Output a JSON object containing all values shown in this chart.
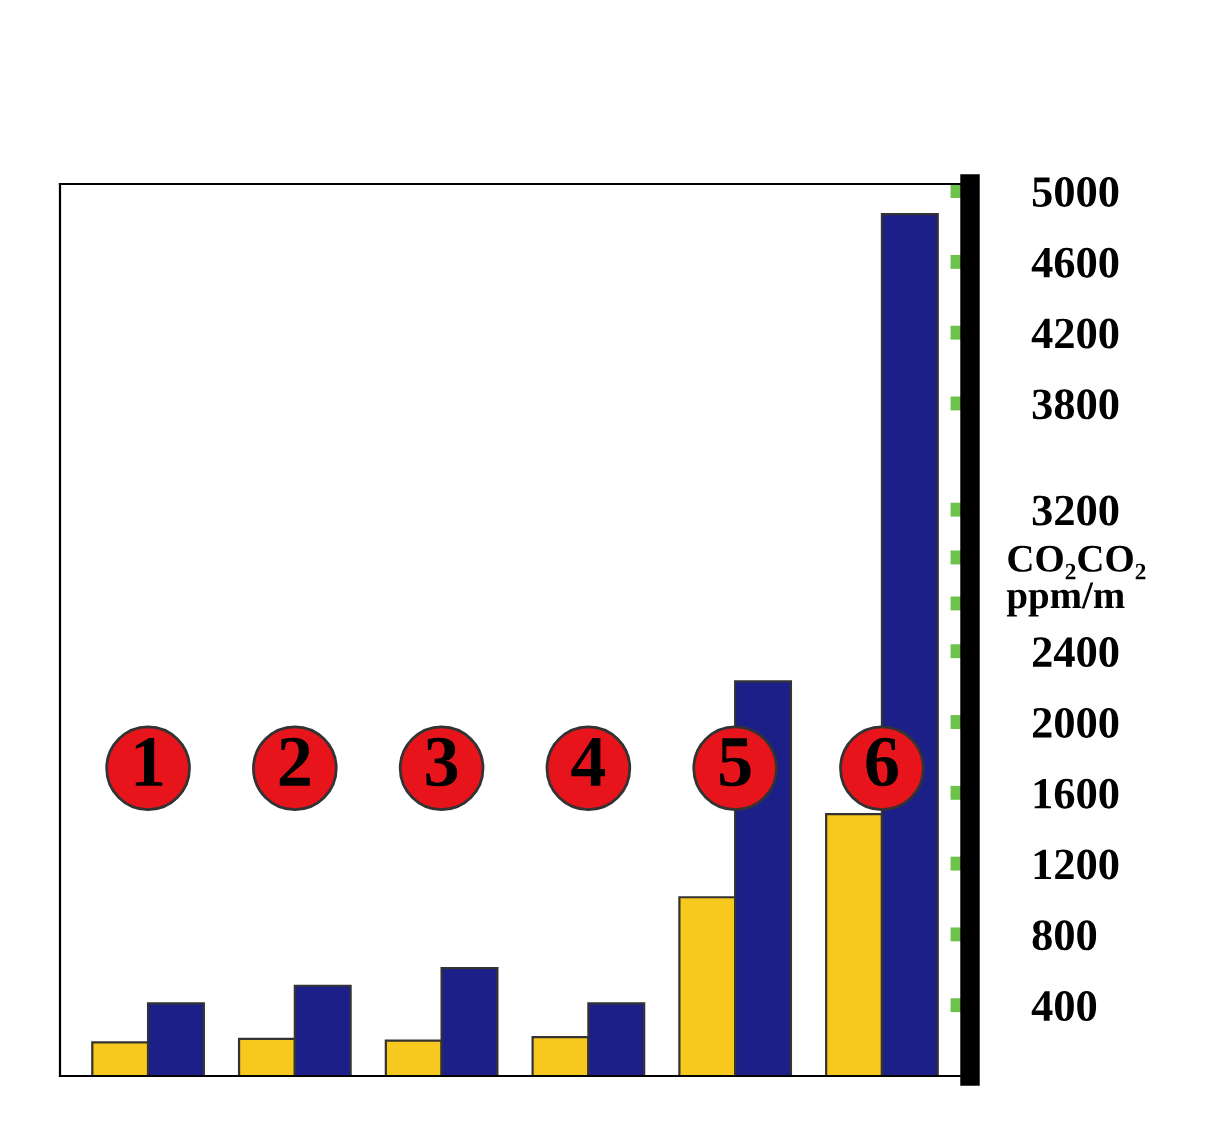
{
  "chart_data": {
    "type": "bar",
    "categories": [
      "1",
      "2",
      "3",
      "4",
      "5",
      "6"
    ],
    "series": [
      {
        "color": "#f7c81e",
        "values": [
          190,
          210,
          200,
          220,
          1010,
          1480
        ]
      },
      {
        "color": "#1c1f88",
        "values": [
          410,
          510,
          610,
          410,
          2230,
          4870
        ]
      }
    ],
    "ylabel": "CO₂CO₂\nppm/m",
    "ylim": [
      0,
      5040
    ],
    "yticks": [
      400,
      800,
      1200,
      1600,
      2000,
      2400,
      {
        "value": 2670,
        "label": null
      },
      {
        "value": 2930,
        "label": null
      },
      3200,
      3800,
      4200,
      4600,
      5000
    ],
    "tick_labels": "y",
    "grid": false,
    "legend": false
  }
}
